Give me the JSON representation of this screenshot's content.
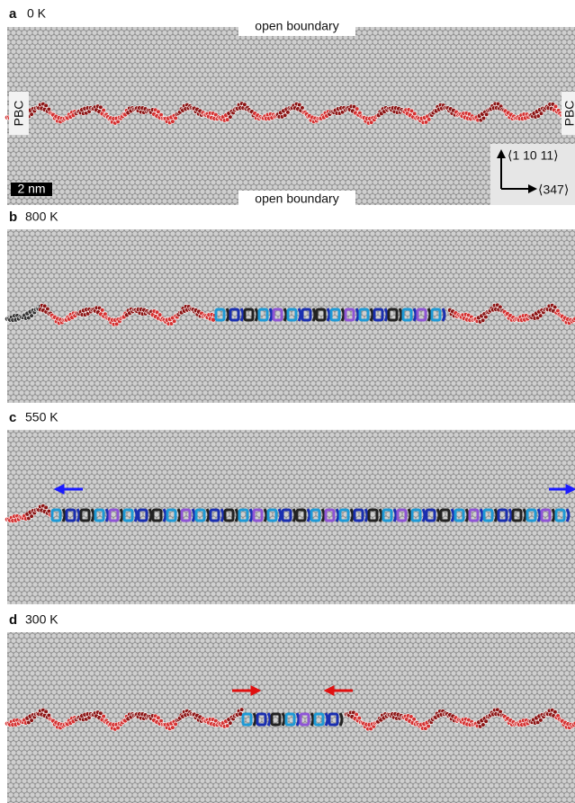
{
  "panels": [
    {
      "label": "a",
      "temperature": "0 K",
      "top_boundary": "open boundary",
      "bottom_boundary": "open boundary",
      "left_edge": "PBC",
      "right_edge": "PBC",
      "scale_bar": "2 nm",
      "axis_up": "⟨1 10 11⟩",
      "axis_right": "⟨347⟩"
    },
    {
      "label": "b",
      "temperature": "800 K"
    },
    {
      "label": "c",
      "temperature": "550 K"
    },
    {
      "label": "d",
      "temperature": "300 K"
    }
  ]
}
